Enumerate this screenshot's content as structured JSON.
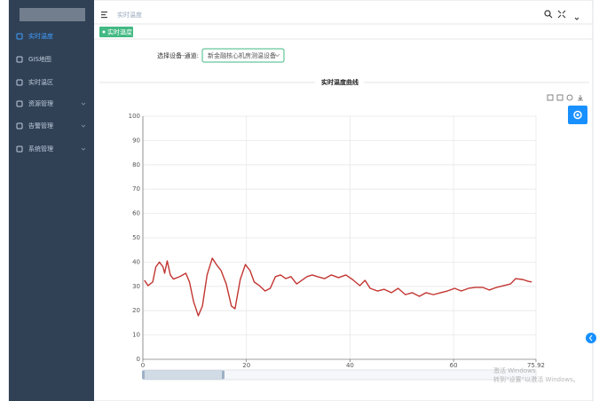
{
  "sidebar": {
    "menu": [
      {
        "label": "实时温度",
        "active": true,
        "submenu": false
      },
      {
        "label": "GIS地图",
        "active": false,
        "submenu": false
      },
      {
        "label": "实时温区",
        "active": false,
        "submenu": false
      },
      {
        "label": "资源管理",
        "active": false,
        "submenu": true
      },
      {
        "label": "告警管理",
        "active": false,
        "submenu": true
      },
      {
        "label": "系统管理",
        "active": false,
        "submenu": true
      }
    ]
  },
  "header": {
    "breadcrumb": "实时温度"
  },
  "tag": "实时温度",
  "filter": {
    "label": "选择设备-通道:",
    "value": "新金融核心机房测温设备-"
  },
  "chart_data": {
    "type": "line",
    "title": "实时温度曲线",
    "x": [
      0.3,
      1,
      1.9,
      2.5,
      3.2,
      3.9,
      4.2,
      4.7,
      5.3,
      5.9,
      7.1,
      8.3,
      9,
      9.8,
      10.7,
      11.5,
      12.4,
      13.4,
      14.2,
      15.1,
      16.1,
      17.1,
      17.8,
      18.8,
      19.8,
      20.7,
      21.5,
      22.5,
      23.6,
      24.6,
      25.6,
      26.6,
      27.6,
      28.6,
      29.7,
      30.7,
      31.7,
      32.7,
      33.7,
      35.1,
      36.4,
      37.8,
      39.2,
      40.5,
      41.9,
      42.9,
      43.9,
      45.3,
      46.6,
      48,
      49.3,
      50.7,
      52,
      53.4,
      54.7,
      56.1,
      57.5,
      58.8,
      60.2,
      61.5,
      62.9,
      64.2,
      65.6,
      66.9,
      68.3,
      69.7,
      71,
      72,
      73.4,
      74.4,
      75.1
    ],
    "series": [
      {
        "color": "#c23531",
        "values": [
          32.5,
          30.3,
          31.8,
          38,
          40,
          38,
          35.4,
          40.5,
          34.7,
          33,
          34,
          35.4,
          31.8,
          23.7,
          17.9,
          21.9,
          34.7,
          41.6,
          39,
          36.5,
          31,
          21.9,
          20.8,
          32.8,
          39,
          36.5,
          31.8,
          30.3,
          28.1,
          29.2,
          34,
          34.7,
          33.2,
          34,
          31,
          32.5,
          34,
          34.7,
          34,
          33.2,
          34.7,
          33.6,
          34.7,
          32.8,
          30.3,
          32.5,
          29.2,
          28.1,
          28.8,
          27.4,
          29.2,
          26.6,
          27.4,
          25.9,
          27.4,
          26.6,
          27.4,
          28.1,
          29.2,
          28.1,
          29.2,
          29.6,
          29.6,
          28.5,
          29.6,
          30.3,
          31,
          33.2,
          32.8,
          32.1,
          31.8
        ]
      }
    ],
    "xlim": [
      0,
      75.92
    ],
    "xticks": [
      0,
      20,
      40,
      60,
      75.92
    ],
    "ylim": [
      0,
      100
    ],
    "yticks": [
      0,
      10,
      20,
      30,
      40,
      50,
      60,
      70,
      80,
      90,
      100
    ],
    "grid": true
  },
  "watermark": {
    "line1": "激活 Windows",
    "line2": "转到“设置”以激活 Windows。"
  }
}
